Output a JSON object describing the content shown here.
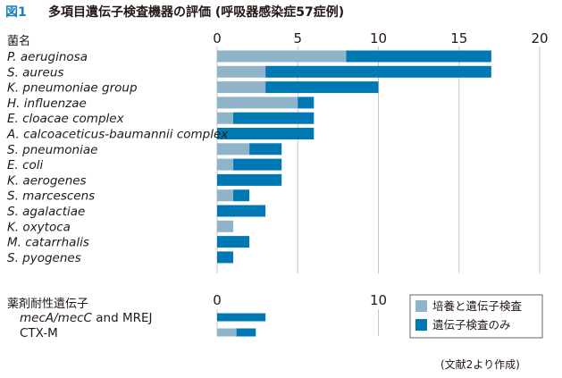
{
  "title": {
    "number": "図1",
    "text": "多項目遺伝子検査機器の評価 (呼吸器感染症57症例)"
  },
  "colors": {
    "both": "#8fb3c9",
    "gene_only": "#0078b4",
    "grid": "#c7c7c7",
    "title_accent": "#1a7fb8"
  },
  "chart_data": [
    {
      "type": "bar",
      "orientation": "horizontal",
      "stacked": true,
      "row_header": "菌名",
      "xlim": [
        0,
        20
      ],
      "xticks": [
        0,
        5,
        10,
        15,
        20
      ],
      "grid": true,
      "categories": [
        "P. aeruginosa",
        "S. aureus",
        "K. pneumoniae group",
        "H. influenzae",
        "E. cloacae complex",
        "A. calcoaceticus-baumannii complex",
        "S. pneumoniae",
        "E. coli",
        "K. aerogenes",
        "S. marcescens",
        "S. agalactiae",
        "K. oxytoca",
        "M. catarrhalis",
        "S. pyogenes"
      ],
      "series": [
        {
          "name": "培養と遺伝子検査",
          "values": [
            8,
            3,
            3,
            5,
            1,
            0,
            2,
            1,
            0,
            1,
            0,
            1,
            0,
            0
          ]
        },
        {
          "name": "遺伝子検査のみ",
          "values": [
            9,
            14,
            7,
            1,
            5,
            6,
            2,
            3,
            4,
            1,
            3,
            0,
            2,
            1
          ]
        }
      ]
    },
    {
      "type": "bar",
      "orientation": "horizontal",
      "stacked": true,
      "row_header": "薬剤耐性遺伝子",
      "xlim": [
        0,
        20
      ],
      "xticks": [
        0,
        10
      ],
      "grid": true,
      "categories": [
        {
          "italic": "mecA/mecC",
          "plain": " and MREJ"
        },
        {
          "italic": "",
          "plain": "CTX-M"
        }
      ],
      "series": [
        {
          "name": "培養と遺伝子検査",
          "values": [
            0,
            1.2
          ]
        },
        {
          "name": "遺伝子検査のみ",
          "values": [
            3,
            1.2
          ]
        }
      ]
    }
  ],
  "legend": {
    "position": "right",
    "items": [
      {
        "label": "培養と遺伝子検査",
        "color_key": "both"
      },
      {
        "label": "遺伝子検査のみ",
        "color_key": "gene_only"
      }
    ]
  },
  "source_note": "(文献2より作成)"
}
